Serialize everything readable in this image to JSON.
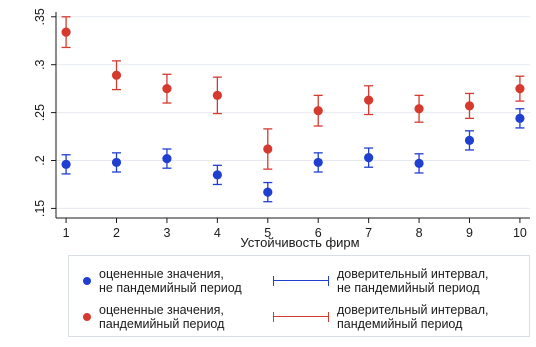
{
  "chart_data": {
    "type": "scatter",
    "xlabel": "Устойчивость фирм",
    "xticks": [
      "1",
      "2",
      "3",
      "4",
      "5",
      "6",
      "7",
      "8",
      "9",
      "10"
    ],
    "yticks": [
      ".15",
      ".2",
      ".25",
      ".3",
      ".35"
    ],
    "ytick_values": [
      0.15,
      0.2,
      0.25,
      0.3,
      0.35
    ],
    "xlim": [
      0.8,
      10.2
    ],
    "ylim": [
      0.14,
      0.355
    ],
    "grid": true,
    "legend_position": "bottom",
    "colors": {
      "non_pandemic": "#1f3fd0",
      "pandemic": "#d63a2f",
      "grid": "#e6eaf0"
    },
    "series": [
      {
        "legend_point": "оцененные значения,\nне пандемийный период",
        "legend_ci": "доверительный интервал,\nне пандемийный период",
        "color_key": "non_pandemic",
        "x": [
          1,
          2,
          3,
          4,
          5,
          6,
          7,
          8,
          9,
          10
        ],
        "y": [
          0.196,
          0.198,
          0.202,
          0.185,
          0.167,
          0.198,
          0.203,
          0.197,
          0.221,
          0.244
        ],
        "lower": [
          0.186,
          0.188,
          0.192,
          0.175,
          0.157,
          0.188,
          0.193,
          0.187,
          0.211,
          0.234
        ],
        "upper": [
          0.206,
          0.208,
          0.212,
          0.195,
          0.177,
          0.208,
          0.213,
          0.207,
          0.231,
          0.254
        ]
      },
      {
        "legend_point": "оцененные значения,\nпандемийный период",
        "legend_ci": "доверительный интервал,\nпандемийный период",
        "color_key": "pandemic",
        "x": [
          1,
          2,
          3,
          4,
          5,
          6,
          7,
          8,
          9,
          10
        ],
        "y": [
          0.334,
          0.289,
          0.275,
          0.268,
          0.212,
          0.252,
          0.263,
          0.254,
          0.257,
          0.275
        ],
        "lower": [
          0.318,
          0.274,
          0.26,
          0.249,
          0.191,
          0.236,
          0.248,
          0.24,
          0.244,
          0.262
        ],
        "upper": [
          0.35,
          0.304,
          0.29,
          0.287,
          0.233,
          0.268,
          0.278,
          0.268,
          0.27,
          0.288
        ]
      }
    ]
  }
}
